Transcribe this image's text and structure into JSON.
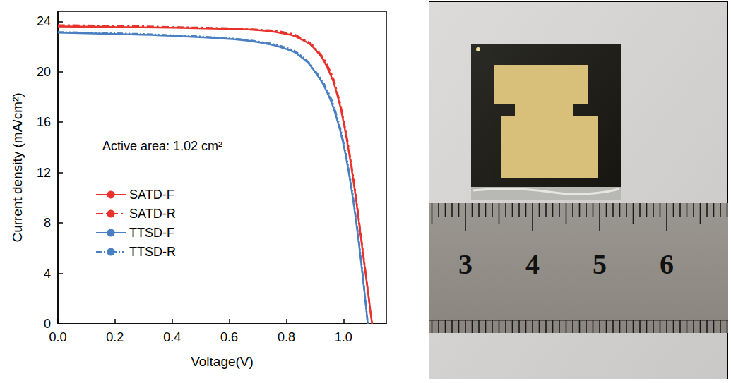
{
  "chart_data": {
    "type": "line",
    "xlabel": "Voltage(V)",
    "ylabel": "Current density (mA/cm²)",
    "annotation": "Active area: 1.02 cm²",
    "xlim": [
      0,
      1.15
    ],
    "ylim": [
      0,
      24.8
    ],
    "xticks": [
      {
        "value": 0,
        "label": "0.0"
      },
      {
        "value": 0.2,
        "label": "0.2"
      },
      {
        "value": 0.4,
        "label": "0.4"
      },
      {
        "value": 0.6,
        "label": "0.6"
      },
      {
        "value": 0.8,
        "label": "0.8"
      },
      {
        "value": 1.0,
        "label": "1.0"
      }
    ],
    "yticks": [
      0,
      4,
      8,
      12,
      16,
      20,
      24
    ],
    "grid": false,
    "legend": "left",
    "series": [
      {
        "name": "SATD-F",
        "color": "#e8322b",
        "line_style": "solid",
        "x": [
          0,
          0.2,
          0.4,
          0.6,
          0.7,
          0.8,
          0.85,
          0.9,
          0.95,
          0.98,
          1.0,
          1.02,
          1.04,
          1.06,
          1.08,
          1.1
        ],
        "values": [
          23.6,
          23.55,
          23.5,
          23.4,
          23.3,
          23.0,
          22.6,
          21.8,
          20.0,
          18.0,
          16.0,
          13.5,
          10.5,
          7.0,
          3.5,
          0
        ]
      },
      {
        "name": "SATD-R",
        "color": "#e8322b",
        "line_style": "dashdot",
        "x": [
          0,
          0.2,
          0.4,
          0.6,
          0.7,
          0.8,
          0.85,
          0.9,
          0.95,
          0.98,
          1.0,
          1.02,
          1.04,
          1.06,
          1.08,
          1.1
        ],
        "values": [
          23.7,
          23.65,
          23.55,
          23.45,
          23.35,
          23.1,
          22.7,
          21.9,
          20.2,
          18.2,
          16.2,
          13.7,
          10.7,
          7.2,
          3.6,
          0
        ]
      },
      {
        "name": "TTSD-F",
        "color": "#4a7fc1",
        "line_style": "solid",
        "x": [
          0,
          0.2,
          0.4,
          0.6,
          0.7,
          0.8,
          0.85,
          0.9,
          0.95,
          0.98,
          1.0,
          1.02,
          1.04,
          1.06,
          1.085
        ],
        "values": [
          23.1,
          23.0,
          22.85,
          22.6,
          22.35,
          21.8,
          21.2,
          20.0,
          18.0,
          16.0,
          14.2,
          11.8,
          8.8,
          5.2,
          0
        ]
      },
      {
        "name": "TTSD-R",
        "color": "#4a7fc1",
        "line_style": "dashdotdot",
        "x": [
          0,
          0.2,
          0.4,
          0.6,
          0.7,
          0.8,
          0.85,
          0.9,
          0.95,
          0.98,
          1.0,
          1.02,
          1.04,
          1.06,
          1.085
        ],
        "values": [
          23.15,
          23.05,
          22.9,
          22.65,
          22.4,
          21.9,
          21.3,
          20.1,
          18.2,
          16.2,
          14.4,
          12.0,
          9.0,
          5.4,
          0
        ]
      }
    ]
  },
  "photo": {
    "ruler_labels": [
      3,
      4,
      5,
      6
    ]
  }
}
